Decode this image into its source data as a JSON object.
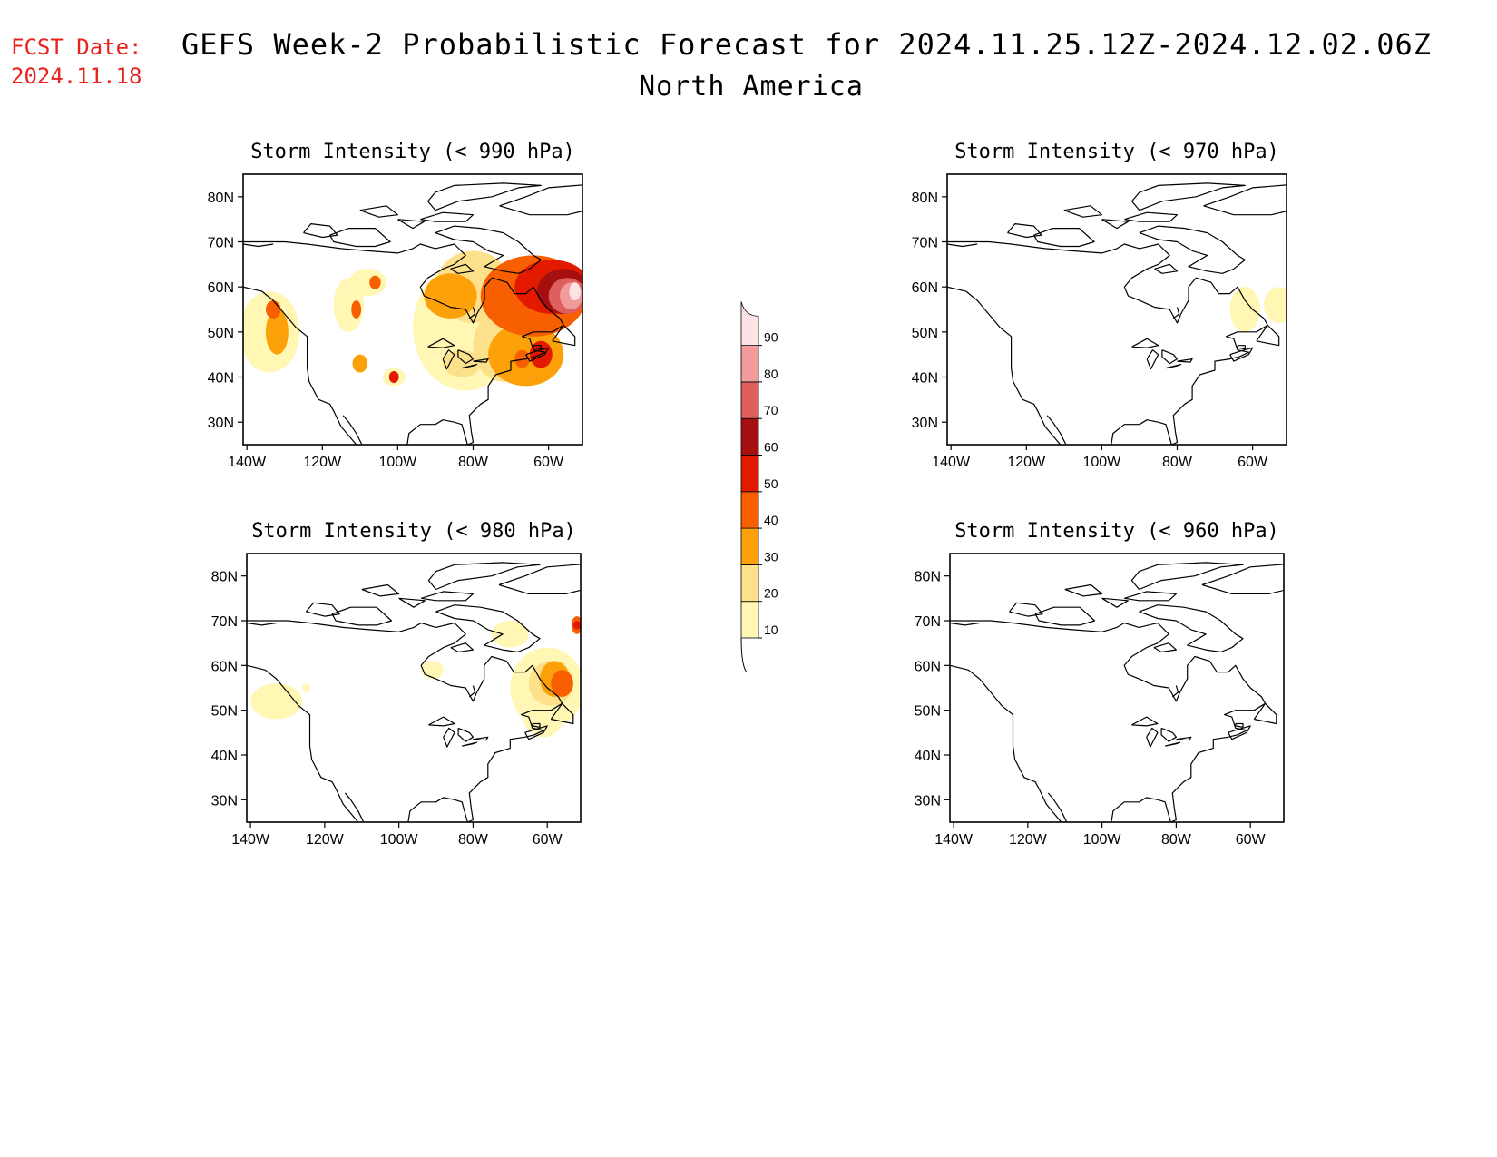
{
  "header": {
    "fcst_label": "FCST Date:",
    "fcst_date": "2024.11.18",
    "title": "GEFS Week-2 Probabilistic Forecast for 2024.11.25.12Z-2024.12.02.06Z",
    "region": "North America"
  },
  "colors": {
    "fcst_text": "#e8221c",
    "levels": [
      "#fff7b3",
      "#fde08a",
      "#fca10a",
      "#f75f00",
      "#e41a00",
      "#a50f0f",
      "#df5f5f",
      "#f29b9b",
      "#fde3e5"
    ]
  },
  "colorbar": {
    "labels": [
      "10",
      "20",
      "30",
      "40",
      "50",
      "60",
      "70",
      "80",
      "90"
    ]
  },
  "axes": {
    "lon_labels": [
      "140W",
      "120W",
      "100W",
      "80W",
      "60W"
    ],
    "lat_labels": [
      "80N",
      "70N",
      "60N",
      "50N",
      "40N",
      "30N"
    ]
  },
  "panels": [
    {
      "id": "p990",
      "title": "Storm Intensity (< 990 hPa)",
      "blobs": [
        {
          "lon": -134,
          "lat": 50,
          "level": 1,
          "rx": 8,
          "ry": 9
        },
        {
          "lon": -132,
          "lat": 50,
          "level": 3,
          "rx": 3,
          "ry": 5
        },
        {
          "lon": -133,
          "lat": 55,
          "level": 4,
          "rx": 2,
          "ry": 2
        },
        {
          "lon": -113,
          "lat": 56,
          "level": 1,
          "rx": 4,
          "ry": 6
        },
        {
          "lon": -111,
          "lat": 55,
          "level": 4,
          "rx": 1.3,
          "ry": 2
        },
        {
          "lon": -108,
          "lat": 61,
          "level": 1,
          "rx": 5,
          "ry": 3
        },
        {
          "lon": -106,
          "lat": 61,
          "level": 4,
          "rx": 1.5,
          "ry": 1.5
        },
        {
          "lon": -110,
          "lat": 43,
          "level": 3,
          "rx": 2,
          "ry": 2
        },
        {
          "lon": -101,
          "lat": 40,
          "level": 1,
          "rx": 3,
          "ry": 2
        },
        {
          "lon": -101,
          "lat": 40,
          "level": 5,
          "rx": 1.3,
          "ry": 1.3
        },
        {
          "lon": -82,
          "lat": 51,
          "level": 1,
          "rx": 14,
          "ry": 14
        },
        {
          "lon": -80,
          "lat": 60,
          "level": 2,
          "rx": 10,
          "ry": 8
        },
        {
          "lon": -86,
          "lat": 58,
          "level": 3,
          "rx": 7,
          "ry": 5
        },
        {
          "lon": -72,
          "lat": 47,
          "level": 2,
          "rx": 8,
          "ry": 8
        },
        {
          "lon": -66,
          "lat": 45,
          "level": 3,
          "rx": 10,
          "ry": 7
        },
        {
          "lon": -64,
          "lat": 58,
          "level": 4,
          "rx": 14,
          "ry": 9
        },
        {
          "lon": -59,
          "lat": 60,
          "level": 5,
          "rx": 10,
          "ry": 6
        },
        {
          "lon": -56,
          "lat": 59,
          "level": 6,
          "rx": 7,
          "ry": 5
        },
        {
          "lon": -55,
          "lat": 58,
          "level": 7,
          "rx": 5,
          "ry": 4
        },
        {
          "lon": -54,
          "lat": 58,
          "level": 8,
          "rx": 3,
          "ry": 3
        },
        {
          "lon": -53,
          "lat": 59,
          "level": 9,
          "rx": 1.5,
          "ry": 2
        },
        {
          "lon": -62,
          "lat": 45,
          "level": 5,
          "rx": 3,
          "ry": 3
        },
        {
          "lon": -67,
          "lat": 44,
          "level": 4,
          "rx": 2,
          "ry": 2
        },
        {
          "lon": -83,
          "lat": 43,
          "level": 2,
          "rx": 5,
          "ry": 3
        }
      ]
    },
    {
      "id": "p970",
      "title": "Storm Intensity (< 970 hPa)",
      "blobs": [
        {
          "lon": -62,
          "lat": 55,
          "level": 1,
          "rx": 4,
          "ry": 5
        },
        {
          "lon": -53,
          "lat": 56,
          "level": 1,
          "rx": 4,
          "ry": 4
        }
      ]
    },
    {
      "id": "p980",
      "title": "Storm Intensity (< 980 hPa)",
      "blobs": [
        {
          "lon": -133,
          "lat": 52,
          "level": 1,
          "rx": 7,
          "ry": 4
        },
        {
          "lon": -125,
          "lat": 55,
          "level": 1,
          "rx": 1,
          "ry": 1
        },
        {
          "lon": -91,
          "lat": 59,
          "level": 1,
          "rx": 3,
          "ry": 2
        },
        {
          "lon": -70,
          "lat": 67,
          "level": 1,
          "rx": 5,
          "ry": 3
        },
        {
          "lon": -60,
          "lat": 55,
          "level": 1,
          "rx": 10,
          "ry": 9
        },
        {
          "lon": -61,
          "lat": 50,
          "level": 1,
          "rx": 6,
          "ry": 6
        },
        {
          "lon": -59,
          "lat": 56,
          "level": 2,
          "rx": 6,
          "ry": 5
        },
        {
          "lon": -58,
          "lat": 57,
          "level": 3,
          "rx": 4,
          "ry": 4
        },
        {
          "lon": -56,
          "lat": 56,
          "level": 4,
          "rx": 3,
          "ry": 3
        },
        {
          "lon": -52,
          "lat": 69,
          "level": 4,
          "rx": 1.5,
          "ry": 2
        },
        {
          "lon": -52,
          "lat": 69,
          "level": 5,
          "rx": 1,
          "ry": 1
        }
      ]
    },
    {
      "id": "p960",
      "title": "Storm Intensity (< 960 hPa)",
      "blobs": []
    }
  ]
}
